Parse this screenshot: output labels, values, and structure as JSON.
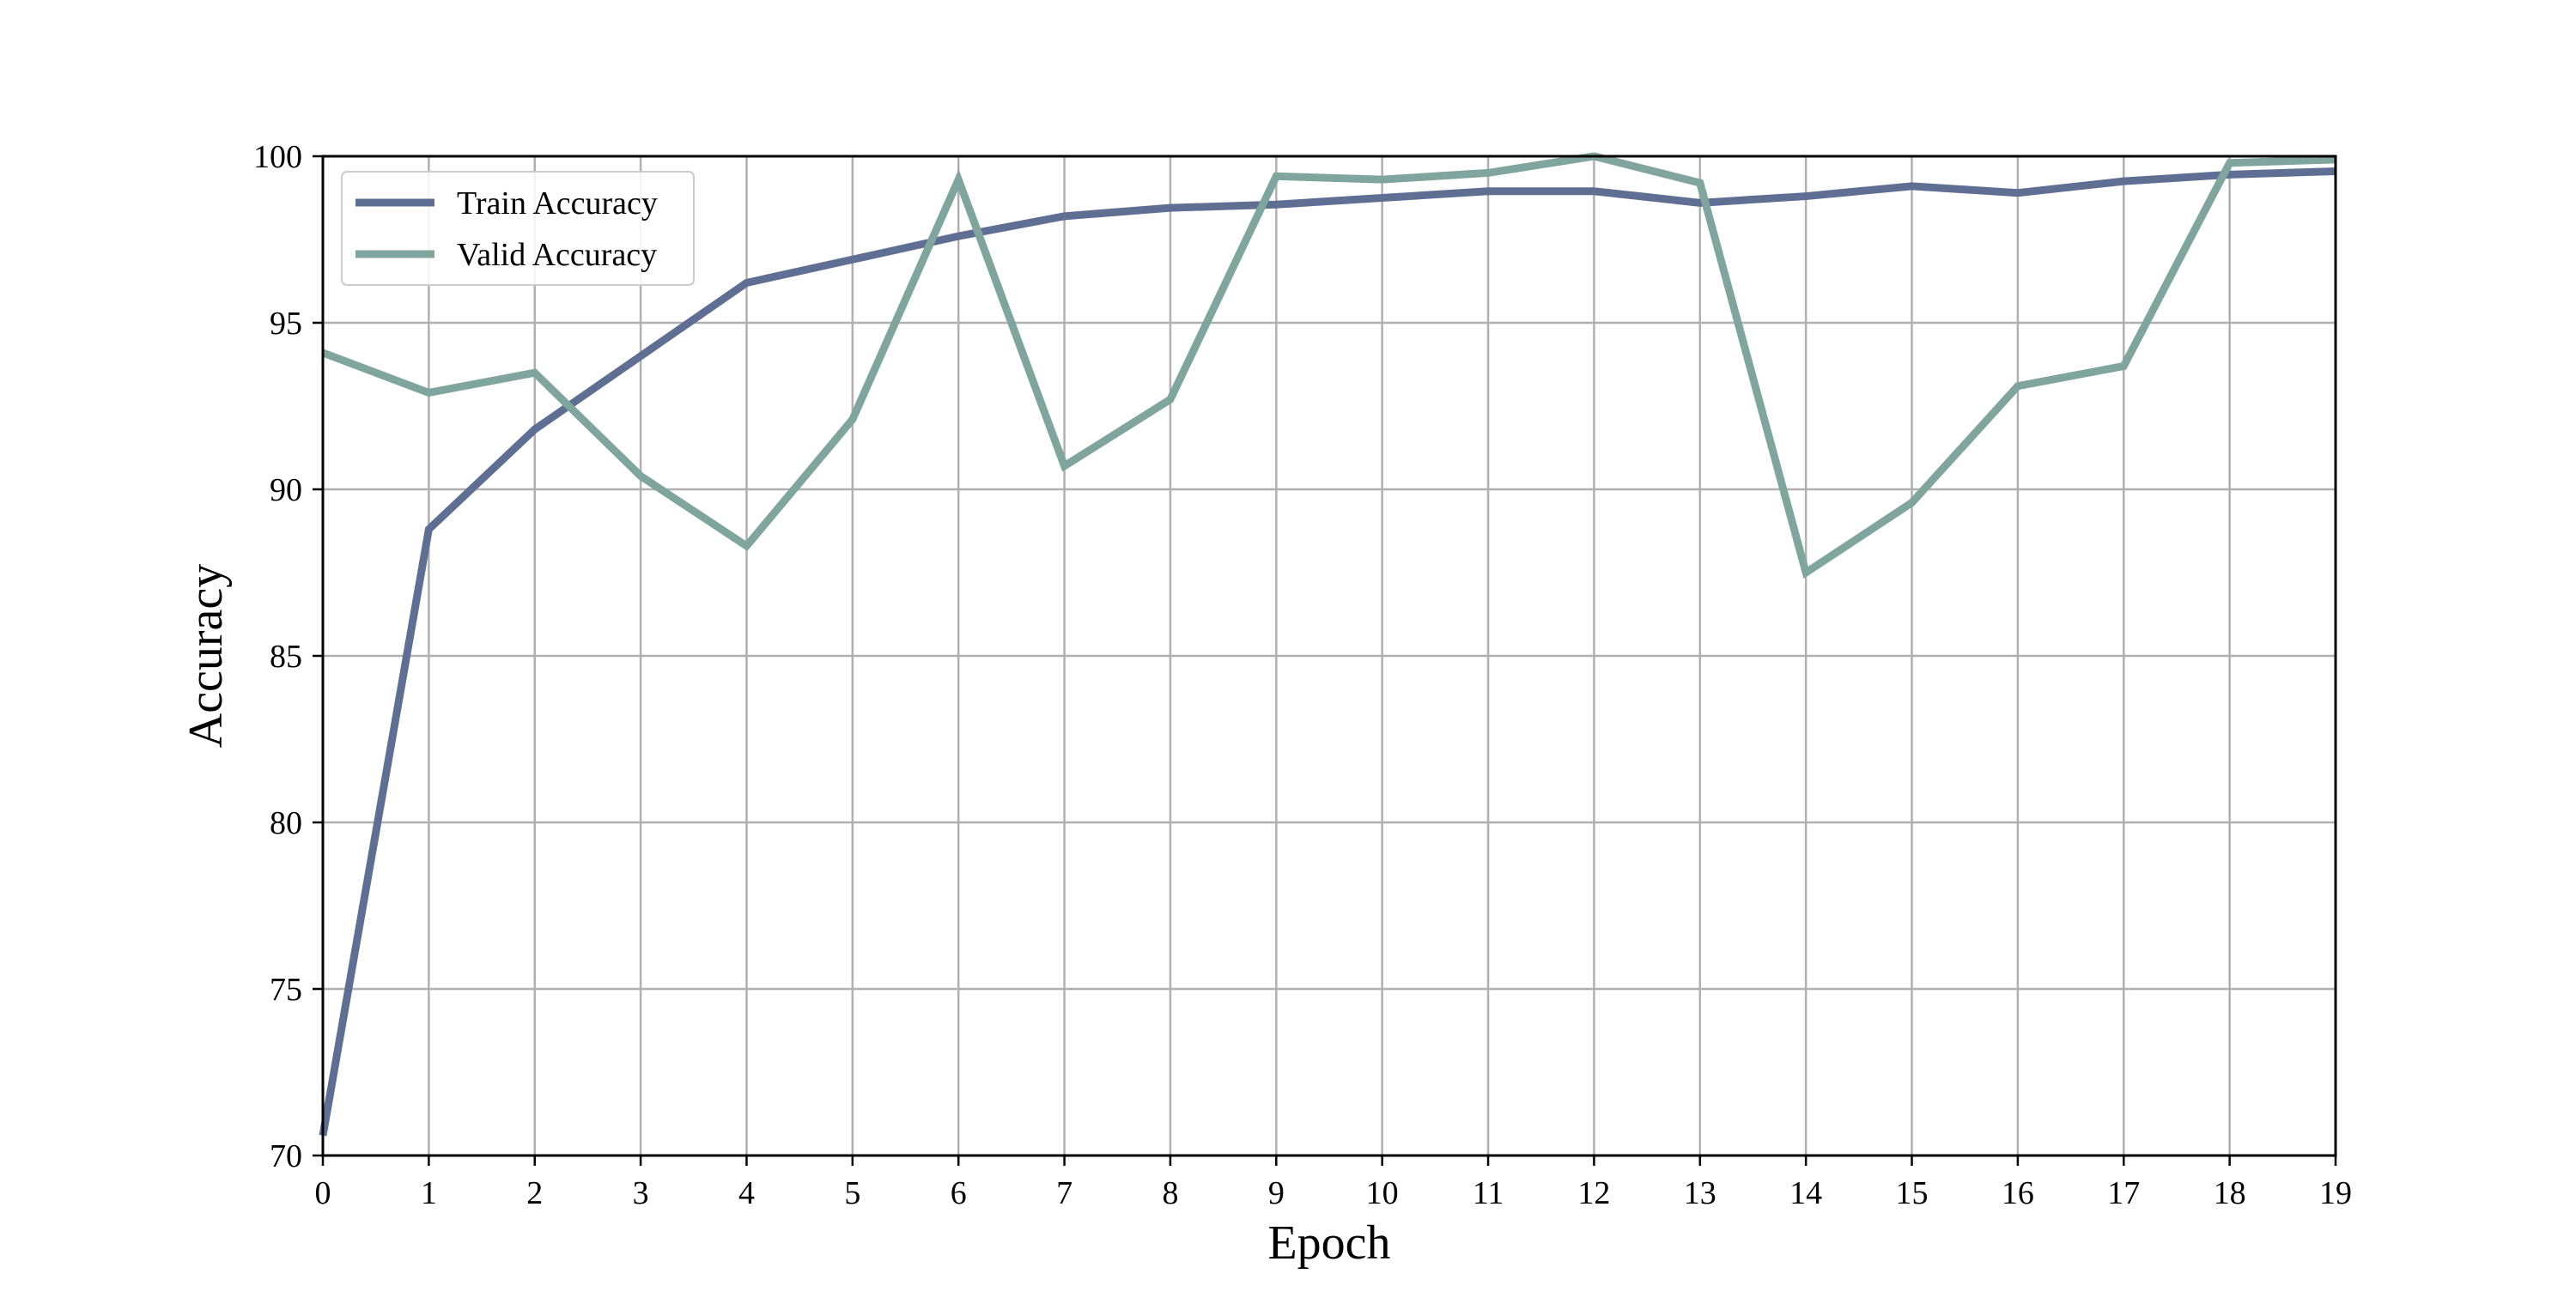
{
  "chart_data": {
    "type": "line",
    "title": "",
    "xlabel": "Epoch",
    "ylabel": "Accuracy",
    "xlim": [
      0,
      19
    ],
    "ylim": [
      70,
      100
    ],
    "x": [
      0,
      1,
      2,
      3,
      4,
      5,
      6,
      7,
      8,
      9,
      10,
      11,
      12,
      13,
      14,
      15,
      16,
      17,
      18,
      19
    ],
    "xticks": [
      "0",
      "1",
      "2",
      "3",
      "4",
      "5",
      "6",
      "7",
      "8",
      "9",
      "10",
      "11",
      "12",
      "13",
      "14",
      "15",
      "16",
      "17",
      "18",
      "19"
    ],
    "yticks": [
      70,
      75,
      80,
      85,
      90,
      95,
      100
    ],
    "grid": true,
    "legend_position": "top-left",
    "series": [
      {
        "name": "Train Accuracy",
        "color": "#5f6f94",
        "values": [
          70.6,
          88.8,
          91.8,
          94.0,
          96.2,
          96.9,
          97.6,
          98.2,
          98.45,
          98.55,
          98.75,
          98.95,
          98.95,
          98.6,
          98.8,
          99.1,
          98.9,
          99.25,
          99.45,
          99.55
        ]
      },
      {
        "name": "Valid Accuracy",
        "color": "#7fa59e",
        "values": [
          94.1,
          92.9,
          93.5,
          90.4,
          88.3,
          92.1,
          99.3,
          90.7,
          92.7,
          99.4,
          99.3,
          99.5,
          100.0,
          99.2,
          87.5,
          89.6,
          93.1,
          93.7,
          99.8,
          99.9
        ]
      }
    ]
  }
}
